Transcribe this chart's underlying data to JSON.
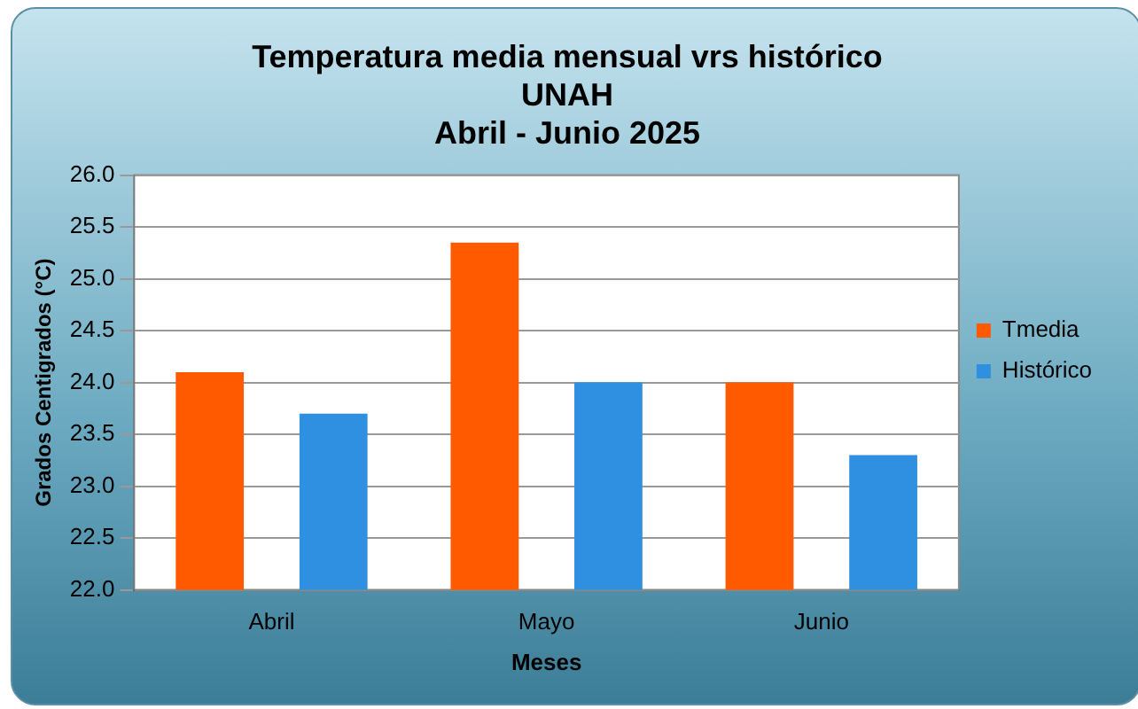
{
  "chart_data": {
    "type": "bar",
    "title": "Temperatura media mensual vrs histórico\nUNAH\nAbril - Junio 2025",
    "xlabel": "Meses",
    "ylabel": "Grados Centigrados (°C)",
    "categories": [
      "Abril",
      "Mayo",
      "Junio"
    ],
    "series": [
      {
        "name": "Tmedia",
        "color": "#ff5a00",
        "values": [
          24.1,
          25.35,
          24.0
        ]
      },
      {
        "name": "Histórico",
        "color": "#2f8fe0",
        "values": [
          23.7,
          24.0,
          23.3
        ]
      }
    ],
    "ylim": [
      22.0,
      26.0
    ],
    "yticks": [
      {
        "value": 22,
        "label": "22.0"
      },
      {
        "value": 22.5,
        "label": "22.5"
      },
      {
        "value": 23,
        "label": "23.0"
      },
      {
        "value": 23.5,
        "label": "23.5"
      },
      {
        "value": 24,
        "label": "24.0"
      },
      {
        "value": 24.5,
        "label": "24.5"
      },
      {
        "value": 25,
        "label": "25.0"
      },
      {
        "value": 25.5,
        "label": "25.5"
      },
      {
        "value": 26,
        "label": "26.0"
      }
    ],
    "grid": "y",
    "legend": "right"
  }
}
